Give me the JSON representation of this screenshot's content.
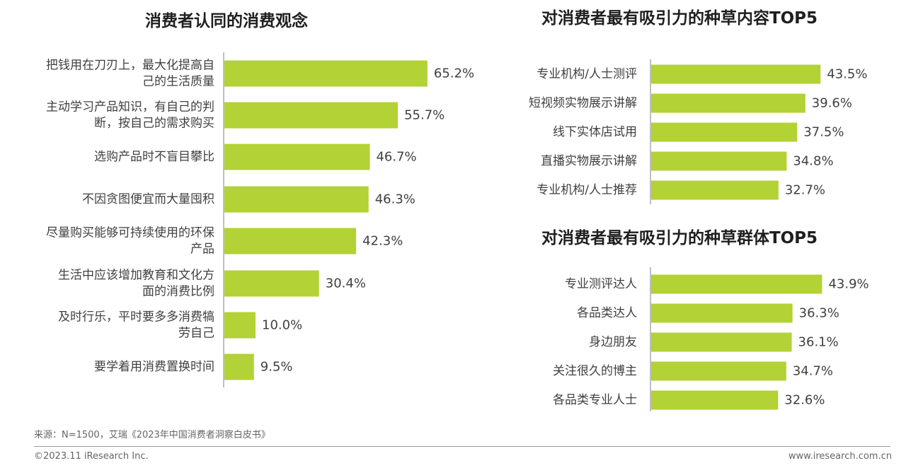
{
  "chart_data": [
    {
      "type": "bar",
      "orientation": "horizontal",
      "title": "消费者认同的消费观念",
      "categories": [
        "把钱用在刀刃上，最大化提高自己的生活质量",
        "主动学习产品知识，有自己的判断，按自己的需求购买",
        "选购产品时不盲目攀比",
        "不因贪图便宜而大量囤积",
        "尽量购买能够可持续使用的环保产品",
        "生活中应该增加教育和文化方面的消费比例",
        "及时行乐，平时要多多消费犒劳自己",
        "要学着用消费置换时间"
      ],
      "category_lines": [
        [
          "把钱用在刀刃上，最大化提高自",
          "己的生活质量"
        ],
        [
          "主动学习产品知识，有自己的判",
          "断，按自己的需求购买"
        ],
        [
          "选购产品时不盲目攀比"
        ],
        [
          "不因贪图便宜而大量囤积"
        ],
        [
          "尽量购买能够可持续使用的环保",
          "产品"
        ],
        [
          "生活中应该增加教育和文化方",
          "面的消费比例"
        ],
        [
          "及时行乐，平时要多多消费犒",
          "劳自己"
        ],
        [
          "要学着用消费置换时间"
        ]
      ],
      "values": [
        65.2,
        55.7,
        46.7,
        46.3,
        42.3,
        30.4,
        10.0,
        9.5
      ],
      "value_labels": [
        "65.2%",
        "55.7%",
        "46.7%",
        "46.3%",
        "42.3%",
        "30.4%",
        "10.0%",
        "9.5%"
      ],
      "unit": "%",
      "bar_color": "#b2d235",
      "grid": false
    },
    {
      "type": "bar",
      "orientation": "horizontal",
      "title": "对消费者最有吸引力的种草内容TOP5",
      "categories": [
        "专业机构/人士测评",
        "短视频实物展示讲解",
        "线下实体店试用",
        "直播实物展示讲解",
        "专业机构/人士推荐"
      ],
      "values": [
        43.5,
        39.6,
        37.5,
        34.8,
        32.7
      ],
      "value_labels": [
        "43.5%",
        "39.6%",
        "37.5%",
        "34.8%",
        "32.7%"
      ],
      "unit": "%",
      "bar_color": "#b2d235",
      "grid": false
    },
    {
      "type": "bar",
      "orientation": "horizontal",
      "title": "对消费者最有吸引力的种草群体TOP5",
      "categories": [
        "专业测评达人",
        "各品类达人",
        "身边朋友",
        "关注很久的博主",
        "各品类专业人士"
      ],
      "values": [
        43.9,
        36.3,
        36.1,
        34.7,
        32.6
      ],
      "value_labels": [
        "43.9%",
        "36.3%",
        "36.1%",
        "34.7%",
        "32.6%"
      ],
      "unit": "%",
      "bar_color": "#b2d235",
      "grid": false
    }
  ],
  "footer": {
    "source": "来源：N=1500，艾瑞《2023年中国消费者洞察白皮书》",
    "copyright": "©2023.11 iResearch Inc.",
    "url": "www.iresearch.com.cn"
  }
}
